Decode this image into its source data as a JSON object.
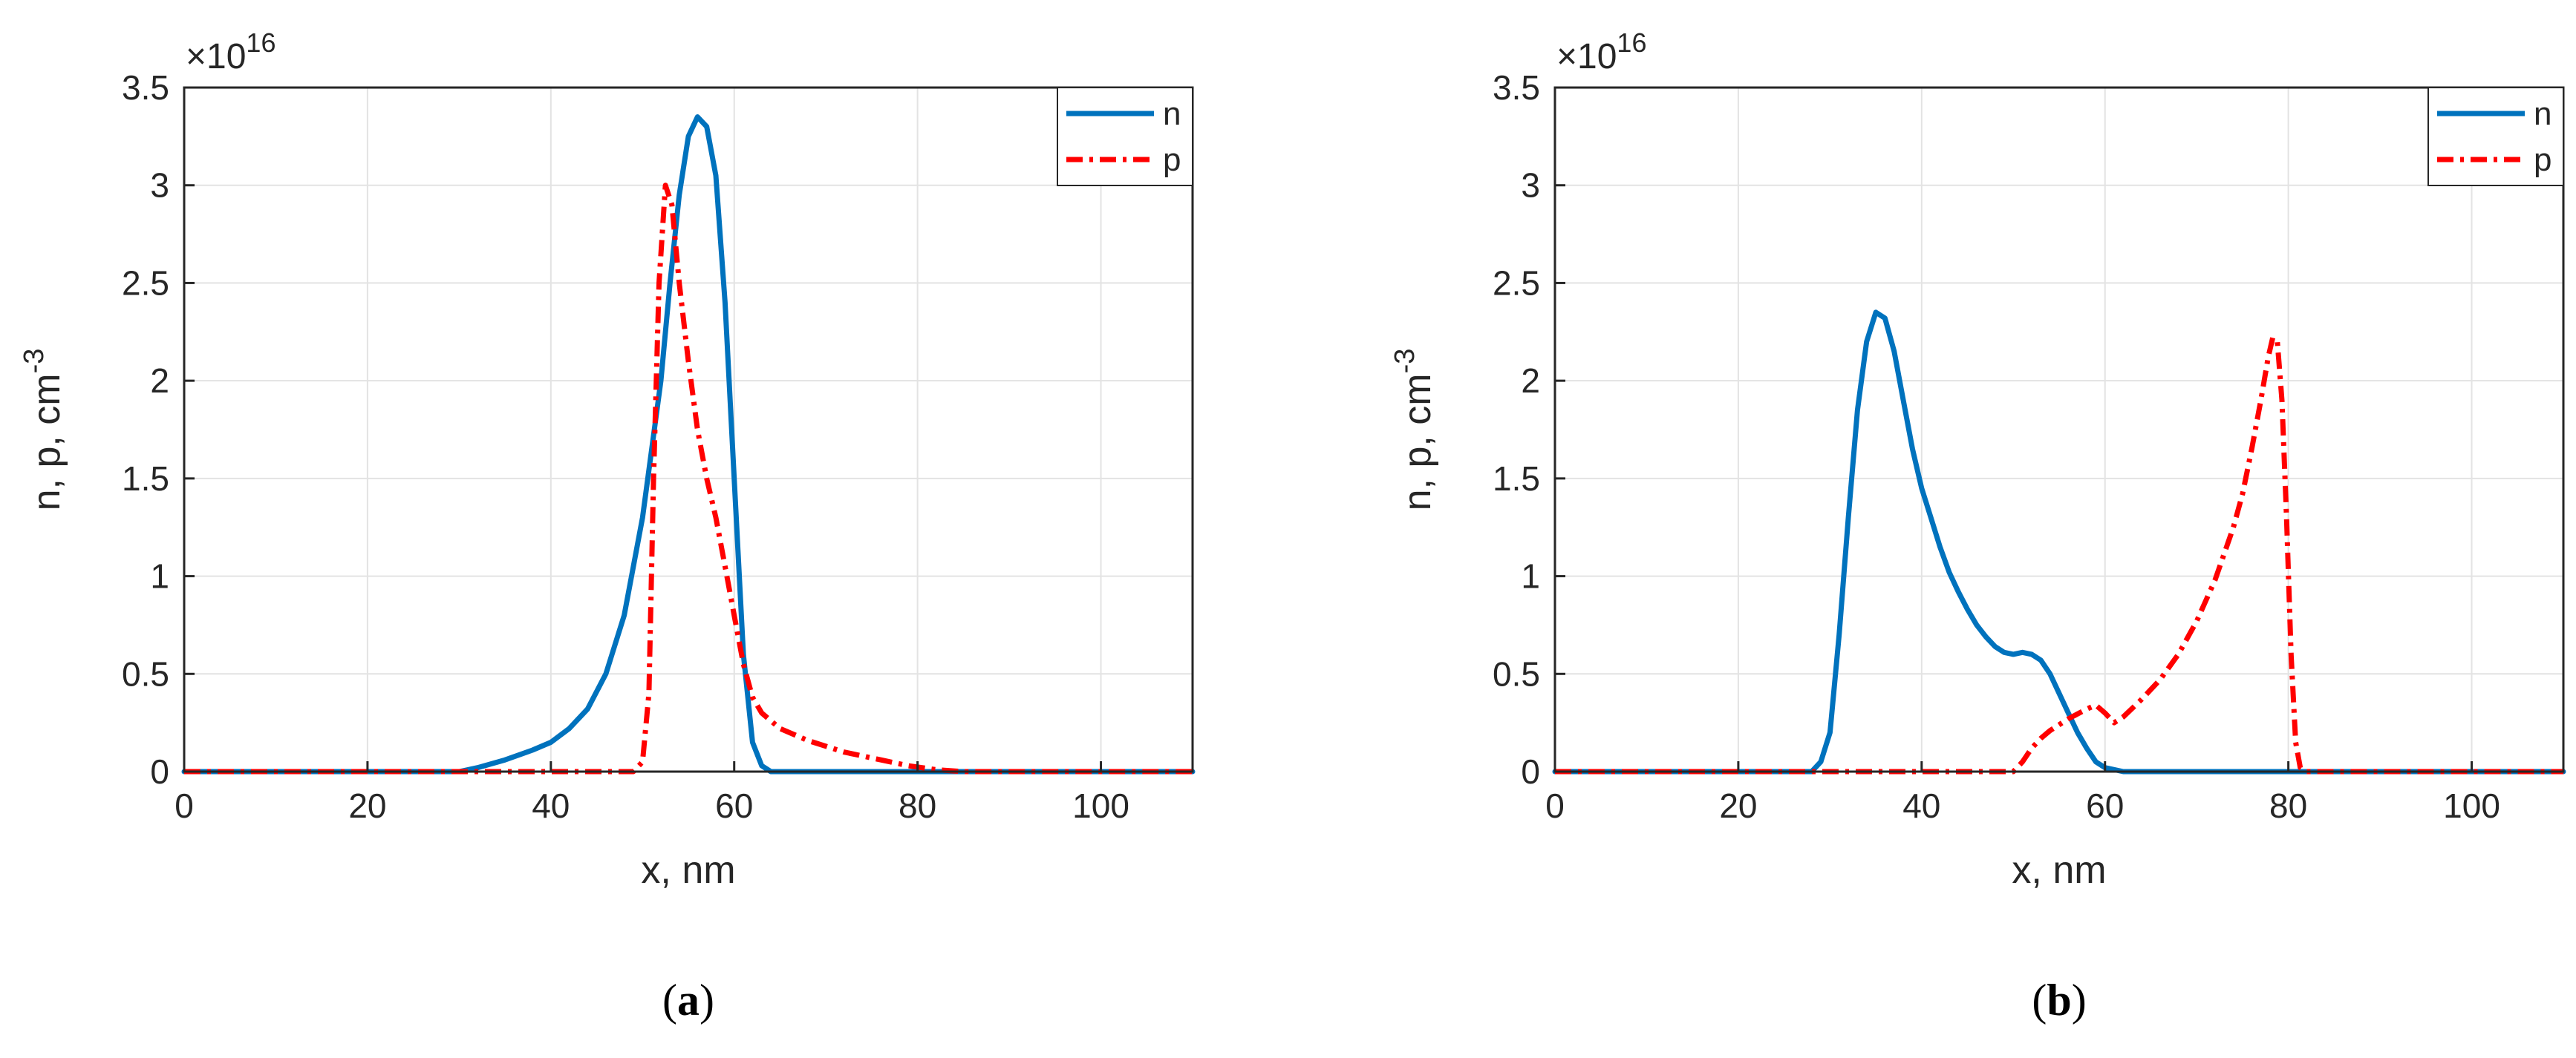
{
  "chart_data": [
    {
      "type": "line",
      "caption_open": "(",
      "caption_letter": "a",
      "caption_close": ")",
      "xlabel": "x, nm",
      "ylabel_main": "n, p, cm",
      "ylabel_sup": "-3",
      "y_multiplier_base": "×10",
      "y_multiplier_exp": "16",
      "xlim": [
        0,
        110
      ],
      "ylim": [
        0,
        3.5
      ],
      "x_ticks": [
        0,
        20,
        40,
        60,
        80,
        100
      ],
      "x_tick_labels": [
        "0",
        "20",
        "40",
        "60",
        "80",
        "100"
      ],
      "y_ticks": [
        0,
        0.5,
        1,
        1.5,
        2,
        2.5,
        3,
        3.5
      ],
      "y_tick_labels": [
        "0",
        "0.5",
        "1",
        "1.5",
        "2",
        "2.5",
        "3",
        "3.5"
      ],
      "grid": true,
      "legend_position": "top-right",
      "series": [
        {
          "name": "n",
          "color": "#0072BD",
          "style": "solid",
          "points": [
            [
              0,
              0
            ],
            [
              30,
              0
            ],
            [
              32,
              0.02
            ],
            [
              35,
              0.06
            ],
            [
              38,
              0.11
            ],
            [
              40,
              0.15
            ],
            [
              42,
              0.22
            ],
            [
              44,
              0.32
            ],
            [
              46,
              0.5
            ],
            [
              48,
              0.8
            ],
            [
              50,
              1.3
            ],
            [
              52,
              2.0
            ],
            [
              53,
              2.5
            ],
            [
              54,
              2.95
            ],
            [
              55,
              3.25
            ],
            [
              56,
              3.35
            ],
            [
              57,
              3.3
            ],
            [
              58,
              3.05
            ],
            [
              59,
              2.4
            ],
            [
              60,
              1.5
            ],
            [
              61,
              0.6
            ],
            [
              62,
              0.15
            ],
            [
              63,
              0.03
            ],
            [
              64,
              0
            ],
            [
              110,
              0
            ]
          ]
        },
        {
          "name": "p",
          "color": "#FF0000",
          "style": "dashdot",
          "points": [
            [
              0,
              0
            ],
            [
              49,
              0
            ],
            [
              50,
              0.05
            ],
            [
              50.7,
              0.4
            ],
            [
              51.2,
              1.5
            ],
            [
              51.8,
              2.5
            ],
            [
              52.5,
              3.0
            ],
            [
              53.2,
              2.9
            ],
            [
              54,
              2.5
            ],
            [
              55,
              2.1
            ],
            [
              56,
              1.75
            ],
            [
              57,
              1.5
            ],
            [
              58,
              1.3
            ],
            [
              59,
              1.05
            ],
            [
              60,
              0.8
            ],
            [
              61,
              0.55
            ],
            [
              62,
              0.38
            ],
            [
              63,
              0.3
            ],
            [
              65,
              0.22
            ],
            [
              68,
              0.16
            ],
            [
              72,
              0.1
            ],
            [
              76,
              0.06
            ],
            [
              79,
              0.03
            ],
            [
              82,
              0.01
            ],
            [
              85,
              0
            ],
            [
              110,
              0
            ]
          ]
        }
      ]
    },
    {
      "type": "line",
      "caption_open": "(",
      "caption_letter": "b",
      "caption_close": ")",
      "xlabel": "x, nm",
      "ylabel_main": "n, p, cm",
      "ylabel_sup": "-3",
      "y_multiplier_base": "×10",
      "y_multiplier_exp": "16",
      "xlim": [
        0,
        110
      ],
      "ylim": [
        0,
        3.5
      ],
      "x_ticks": [
        0,
        20,
        40,
        60,
        80,
        100
      ],
      "x_tick_labels": [
        "0",
        "20",
        "40",
        "60",
        "80",
        "100"
      ],
      "y_ticks": [
        0,
        0.5,
        1,
        1.5,
        2,
        2.5,
        3,
        3.5
      ],
      "y_tick_labels": [
        "0",
        "0.5",
        "1",
        "1.5",
        "2",
        "2.5",
        "3",
        "3.5"
      ],
      "grid": true,
      "legend_position": "top-right",
      "series": [
        {
          "name": "n",
          "color": "#0072BD",
          "style": "solid",
          "points": [
            [
              0,
              0
            ],
            [
              28,
              0
            ],
            [
              29,
              0.05
            ],
            [
              30,
              0.2
            ],
            [
              31,
              0.7
            ],
            [
              32,
              1.3
            ],
            [
              33,
              1.85
            ],
            [
              34,
              2.2
            ],
            [
              35,
              2.35
            ],
            [
              36,
              2.32
            ],
            [
              37,
              2.15
            ],
            [
              38,
              1.9
            ],
            [
              39,
              1.65
            ],
            [
              40,
              1.45
            ],
            [
              41,
              1.3
            ],
            [
              42,
              1.15
            ],
            [
              43,
              1.02
            ],
            [
              44,
              0.92
            ],
            [
              45,
              0.83
            ],
            [
              46,
              0.75
            ],
            [
              47,
              0.69
            ],
            [
              48,
              0.64
            ],
            [
              49,
              0.61
            ],
            [
              50,
              0.6
            ],
            [
              51,
              0.61
            ],
            [
              52,
              0.6
            ],
            [
              53,
              0.57
            ],
            [
              54,
              0.5
            ],
            [
              55,
              0.4
            ],
            [
              56,
              0.3
            ],
            [
              57,
              0.2
            ],
            [
              58,
              0.12
            ],
            [
              59,
              0.05
            ],
            [
              60,
              0.02
            ],
            [
              62,
              0
            ],
            [
              110,
              0
            ]
          ]
        },
        {
          "name": "p",
          "color": "#FF0000",
          "style": "dashdot",
          "points": [
            [
              0,
              0
            ],
            [
              50,
              0
            ],
            [
              51,
              0.05
            ],
            [
              52,
              0.12
            ],
            [
              53,
              0.17
            ],
            [
              54,
              0.21
            ],
            [
              56,
              0.27
            ],
            [
              58,
              0.32
            ],
            [
              59,
              0.34
            ],
            [
              60,
              0.3
            ],
            [
              61,
              0.25
            ],
            [
              62,
              0.28
            ],
            [
              64,
              0.37
            ],
            [
              66,
              0.47
            ],
            [
              68,
              0.6
            ],
            [
              70,
              0.77
            ],
            [
              72,
              0.98
            ],
            [
              74,
              1.25
            ],
            [
              75,
              1.42
            ],
            [
              76,
              1.65
            ],
            [
              77,
              1.9
            ],
            [
              77.8,
              2.12
            ],
            [
              78.3,
              2.22
            ],
            [
              78.8,
              2.2
            ],
            [
              79.3,
              1.9
            ],
            [
              79.8,
              1.3
            ],
            [
              80.3,
              0.6
            ],
            [
              80.8,
              0.15
            ],
            [
              81.3,
              0.02
            ],
            [
              82,
              0
            ],
            [
              110,
              0
            ]
          ]
        }
      ]
    }
  ]
}
